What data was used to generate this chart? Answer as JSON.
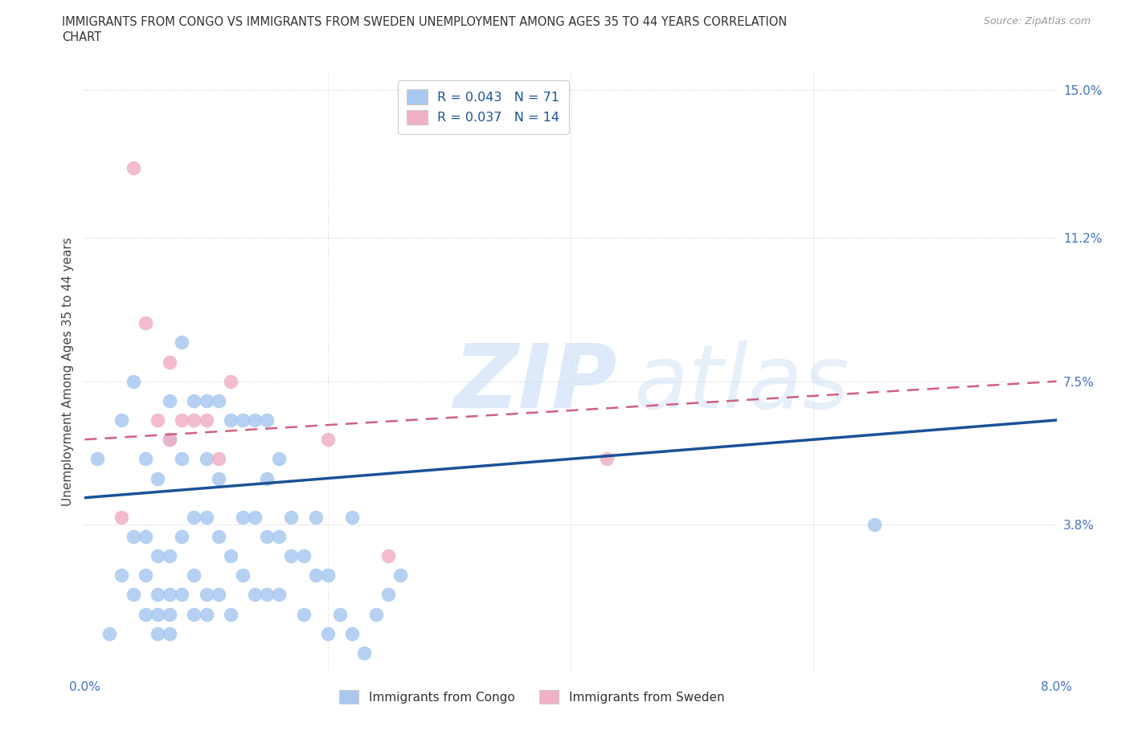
{
  "title_line1": "IMMIGRANTS FROM CONGO VS IMMIGRANTS FROM SWEDEN UNEMPLOYMENT AMONG AGES 35 TO 44 YEARS CORRELATION",
  "title_line2": "CHART",
  "source": "Source: ZipAtlas.com",
  "ylabel": "Unemployment Among Ages 35 to 44 years",
  "xlim": [
    0.0,
    0.08
  ],
  "ylim": [
    0.0,
    0.155
  ],
  "xticks": [
    0.0,
    0.02,
    0.04,
    0.06,
    0.08
  ],
  "xtick_labels": [
    "0.0%",
    "",
    "",
    "",
    "8.0%"
  ],
  "yticks_right": [
    0.0,
    0.038,
    0.075,
    0.112,
    0.15
  ],
  "ytick_labels_right": [
    "",
    "3.8%",
    "7.5%",
    "11.2%",
    "15.0%"
  ],
  "legend1_label": "R = 0.043   N = 71",
  "legend2_label": "R = 0.037   N = 14",
  "congo_color": "#a8c8f0",
  "sweden_color": "#f0b0c8",
  "trendline_congo_color": "#1a5296",
  "trendline_sweden_color": "#d06080",
  "legend_bottom1": "Immigrants from Congo",
  "legend_bottom2": "Immigrants from Sweden",
  "congo_x": [
    0.001,
    0.002,
    0.003,
    0.003,
    0.004,
    0.004,
    0.004,
    0.005,
    0.005,
    0.005,
    0.005,
    0.006,
    0.006,
    0.006,
    0.006,
    0.006,
    0.007,
    0.007,
    0.007,
    0.007,
    0.007,
    0.007,
    0.008,
    0.008,
    0.008,
    0.008,
    0.009,
    0.009,
    0.009,
    0.009,
    0.01,
    0.01,
    0.01,
    0.01,
    0.01,
    0.011,
    0.011,
    0.011,
    0.011,
    0.012,
    0.012,
    0.012,
    0.013,
    0.013,
    0.013,
    0.014,
    0.014,
    0.014,
    0.015,
    0.015,
    0.015,
    0.015,
    0.016,
    0.016,
    0.016,
    0.017,
    0.017,
    0.018,
    0.018,
    0.019,
    0.019,
    0.02,
    0.02,
    0.021,
    0.022,
    0.022,
    0.023,
    0.024,
    0.025,
    0.026,
    0.065
  ],
  "congo_y": [
    0.055,
    0.01,
    0.025,
    0.065,
    0.02,
    0.035,
    0.075,
    0.015,
    0.025,
    0.035,
    0.055,
    0.01,
    0.015,
    0.02,
    0.03,
    0.05,
    0.01,
    0.015,
    0.02,
    0.03,
    0.06,
    0.07,
    0.02,
    0.035,
    0.055,
    0.085,
    0.015,
    0.025,
    0.04,
    0.07,
    0.015,
    0.02,
    0.04,
    0.055,
    0.07,
    0.02,
    0.035,
    0.05,
    0.07,
    0.015,
    0.03,
    0.065,
    0.025,
    0.04,
    0.065,
    0.02,
    0.04,
    0.065,
    0.02,
    0.035,
    0.05,
    0.065,
    0.02,
    0.035,
    0.055,
    0.03,
    0.04,
    0.015,
    0.03,
    0.025,
    0.04,
    0.01,
    0.025,
    0.015,
    0.01,
    0.04,
    0.005,
    0.015,
    0.02,
    0.025,
    0.038
  ],
  "sweden_x": [
    0.003,
    0.004,
    0.005,
    0.006,
    0.007,
    0.007,
    0.008,
    0.009,
    0.01,
    0.011,
    0.012,
    0.02,
    0.025,
    0.043
  ],
  "sweden_y": [
    0.04,
    0.13,
    0.09,
    0.065,
    0.06,
    0.08,
    0.065,
    0.065,
    0.065,
    0.055,
    0.075,
    0.06,
    0.03,
    0.055
  ],
  "congo_trend_x": [
    0.0,
    0.08
  ],
  "congo_trend_y": [
    0.045,
    0.065
  ],
  "sweden_trend_x": [
    0.0,
    0.08
  ],
  "sweden_trend_y": [
    0.06,
    0.075
  ]
}
